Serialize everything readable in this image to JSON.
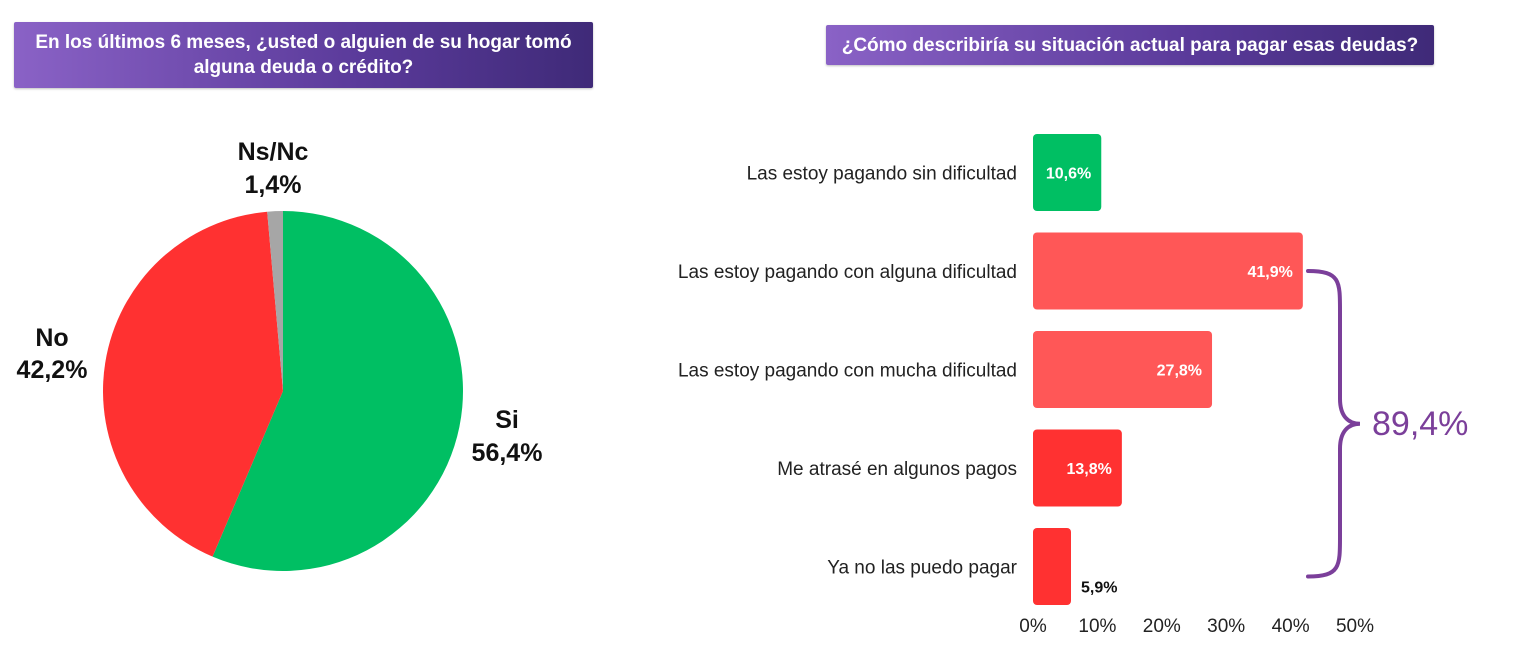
{
  "chart_data": [
    {
      "type": "pie",
      "title": "En los últimos 6 meses, ¿usted o alguien de su hogar tomó alguna deuda o crédito?",
      "slices": [
        {
          "name": "Si",
          "value": 56.4,
          "label": "56,4%",
          "color": "#00bf63"
        },
        {
          "name": "No",
          "value": 42.2,
          "label": "42,2%",
          "color": "#ff3131"
        },
        {
          "name": "Ns/Nc",
          "value": 1.4,
          "label": "1,4%",
          "color": "#a6a6a6"
        }
      ]
    },
    {
      "type": "bar",
      "orientation": "horizontal",
      "title": "¿Cómo describiría su situación actual para pagar esas deudas?",
      "categories": [
        "Las estoy pagando sin dificultad",
        "Las estoy pagando con alguna dificultad",
        "Las estoy pagando con mucha dificultad",
        "Me atrasé en algunos pagos",
        "Ya no las puedo pagar"
      ],
      "values": [
        10.6,
        41.9,
        27.8,
        13.8,
        5.9
      ],
      "value_labels": [
        "10,6%",
        "41,9%",
        "27,8%",
        "13,8%",
        "5,9%"
      ],
      "colors": [
        "#00bf63",
        "#ff5757",
        "#ff5757",
        "#ff3131",
        "#ff3131"
      ],
      "xlim": [
        0,
        50
      ],
      "xticks": [
        "0%",
        "10%",
        "20%",
        "30%",
        "40%",
        "50%"
      ],
      "bracket": {
        "from_index": 1,
        "to_index": 4,
        "label": "89,4%",
        "color": "#7b3f9a"
      }
    }
  ]
}
